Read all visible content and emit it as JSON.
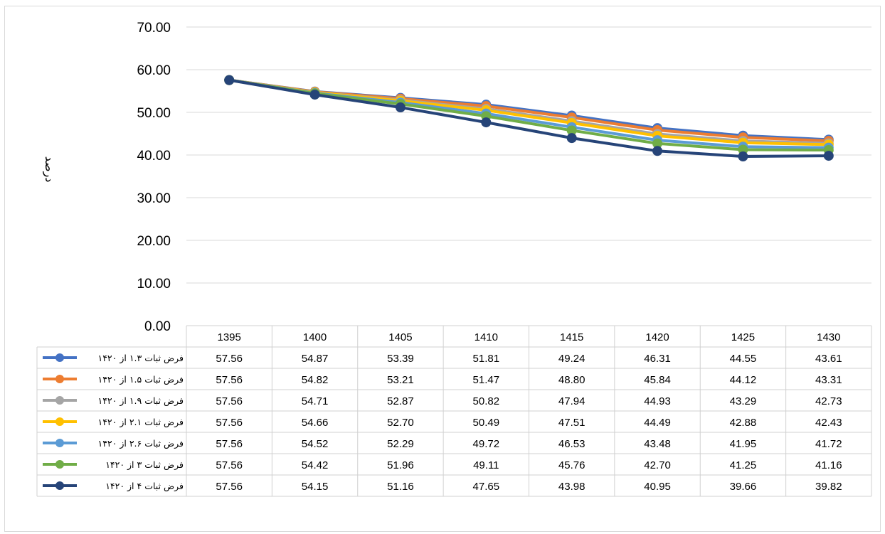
{
  "chart_data": {
    "type": "line",
    "title": "",
    "xlabel": "",
    "ylabel": "درصد",
    "ylim": [
      0,
      70
    ],
    "yticks": [
      "0.00",
      "10.00",
      "20.00",
      "30.00",
      "40.00",
      "50.00",
      "60.00",
      "70.00"
    ],
    "grid": true,
    "legend": "data-table",
    "categories": [
      "1395",
      "1400",
      "1405",
      "1410",
      "1415",
      "1420",
      "1425",
      "1430"
    ],
    "series": [
      {
        "name": "فرض ثبات ۱.۳ از ۱۴۲۰",
        "color": "#4472C4",
        "values": [
          "57.56",
          "54.87",
          "53.39",
          "51.81",
          "49.24",
          "46.31",
          "44.55",
          "43.61"
        ]
      },
      {
        "name": "فرض ثبات ۱.۵ از ۱۴۲۰",
        "color": "#ED7D31",
        "values": [
          "57.56",
          "54.82",
          "53.21",
          "51.47",
          "48.80",
          "45.84",
          "44.12",
          "43.31"
        ]
      },
      {
        "name": "فرض ثبات ۱.۹ از ۱۴۲۰",
        "color": "#A5A5A5",
        "values": [
          "57.56",
          "54.71",
          "52.87",
          "50.82",
          "47.94",
          "44.93",
          "43.29",
          "42.73"
        ]
      },
      {
        "name": "فرض ثبات ۲.۱ از ۱۴۲۰",
        "color": "#FFC000",
        "values": [
          "57.56",
          "54.66",
          "52.70",
          "50.49",
          "47.51",
          "44.49",
          "42.88",
          "42.43"
        ]
      },
      {
        "name": "فرض ثبات ۲.۶ از ۱۴۲۰",
        "color": "#5B9BD5",
        "values": [
          "57.56",
          "54.52",
          "52.29",
          "49.72",
          "46.53",
          "43.48",
          "41.95",
          "41.72"
        ]
      },
      {
        "name": "فرض ثبات ۳ از ۱۴۲۰",
        "color": "#70AD47",
        "values": [
          "57.56",
          "54.42",
          "51.96",
          "49.11",
          "45.76",
          "42.70",
          "41.25",
          "41.16"
        ]
      },
      {
        "name": "فرض ثبات ۴ از ۱۴۲۰",
        "color": "#264478",
        "values": [
          "57.56",
          "54.15",
          "51.16",
          "47.65",
          "43.98",
          "40.95",
          "39.66",
          "39.82"
        ]
      }
    ]
  }
}
